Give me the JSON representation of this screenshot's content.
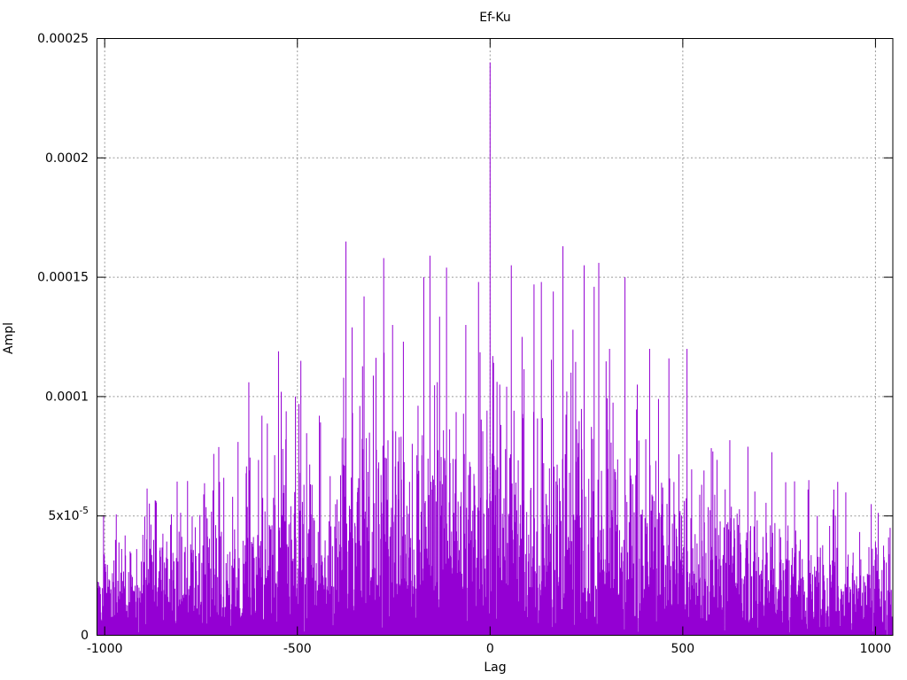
{
  "figure": {
    "background": "#ffffff",
    "text_color": "#000000",
    "border_color": "#000000"
  },
  "chart_data": {
    "type": "impulses",
    "title": "Ef-Ku",
    "xlabel": "Lag",
    "ylabel": "Ampl",
    "xlim": [
      -1020,
      1045
    ],
    "ylim": [
      0,
      0.00025
    ],
    "grid": {
      "show": true,
      "color": "#9b9b9b",
      "dash": "2 2.5"
    },
    "legend": "none",
    "series": {
      "name": "Ef-Ku",
      "color": "#9400d3",
      "style": "impulses"
    },
    "x_ticks": [
      {
        "v": -1000,
        "label": "-1000"
      },
      {
        "v": -500,
        "label": "-500"
      },
      {
        "v": 0,
        "label": "0"
      },
      {
        "v": 500,
        "label": "500"
      },
      {
        "v": 1000,
        "label": "1000"
      }
    ],
    "y_ticks": [
      {
        "v": 0,
        "label": "0"
      },
      {
        "v": 5e-05,
        "label": "5x10",
        "sup": "-5"
      },
      {
        "v": 0.0001,
        "label": "0.0001"
      },
      {
        "v": 0.00015,
        "label": "0.00015"
      },
      {
        "v": 0.0002,
        "label": "0.0002"
      },
      {
        "v": 0.00025,
        "label": "0.00025"
      }
    ],
    "main_peak": {
      "lag": 0,
      "ampl": 0.00024
    },
    "notable_peaks": [
      [
        -717,
        7.6e-05
      ],
      [
        -691,
        6.6e-05
      ],
      [
        -654,
        8.1e-05
      ],
      [
        -626,
        0.000106
      ],
      [
        -592,
        9.2e-05
      ],
      [
        -549,
        0.000119
      ],
      [
        -542,
        0.000102
      ],
      [
        -505,
        0.0001
      ],
      [
        -491,
        0.000115
      ],
      [
        -443,
        9.2e-05
      ],
      [
        -374,
        0.000165
      ],
      [
        -358,
        0.000129
      ],
      [
        -327,
        0.000142
      ],
      [
        -276,
        0.000158
      ],
      [
        -253,
        0.00013
      ],
      [
        -225,
        0.000123
      ],
      [
        -172,
        0.00015
      ],
      [
        -156,
        0.000159
      ],
      [
        -113,
        0.000154
      ],
      [
        -63,
        0.00013
      ],
      [
        -30,
        0.000148
      ],
      [
        7,
        0.000117
      ],
      [
        25,
        0.000105
      ],
      [
        55,
        0.000155
      ],
      [
        83,
        0.000125
      ],
      [
        114,
        0.000147
      ],
      [
        133,
        0.000148
      ],
      [
        164,
        0.000144
      ],
      [
        189,
        0.000163
      ],
      [
        215,
        0.000128
      ],
      [
        244,
        0.000155
      ],
      [
        270,
        0.000146
      ],
      [
        282,
        0.000156
      ],
      [
        310,
        0.00012
      ],
      [
        350,
        0.00015
      ],
      [
        382,
        0.000105
      ],
      [
        414,
        0.00012
      ],
      [
        464,
        0.000116
      ],
      [
        511,
        0.00012
      ],
      [
        578,
        7.7e-05
      ],
      [
        669,
        7.9e-05
      ],
      [
        827,
        6.5e-05
      ],
      [
        892,
        6.1e-05
      ]
    ],
    "noise_model": {
      "seed": 1337,
      "lag_step": 1,
      "base": 1.8e-05,
      "scale": 3.3e-05,
      "shape": 1.35,
      "half_width": 1150,
      "sigma_mult": 1.05,
      "clip_mult": 2.9,
      "min_ampl": 2e-07
    }
  }
}
